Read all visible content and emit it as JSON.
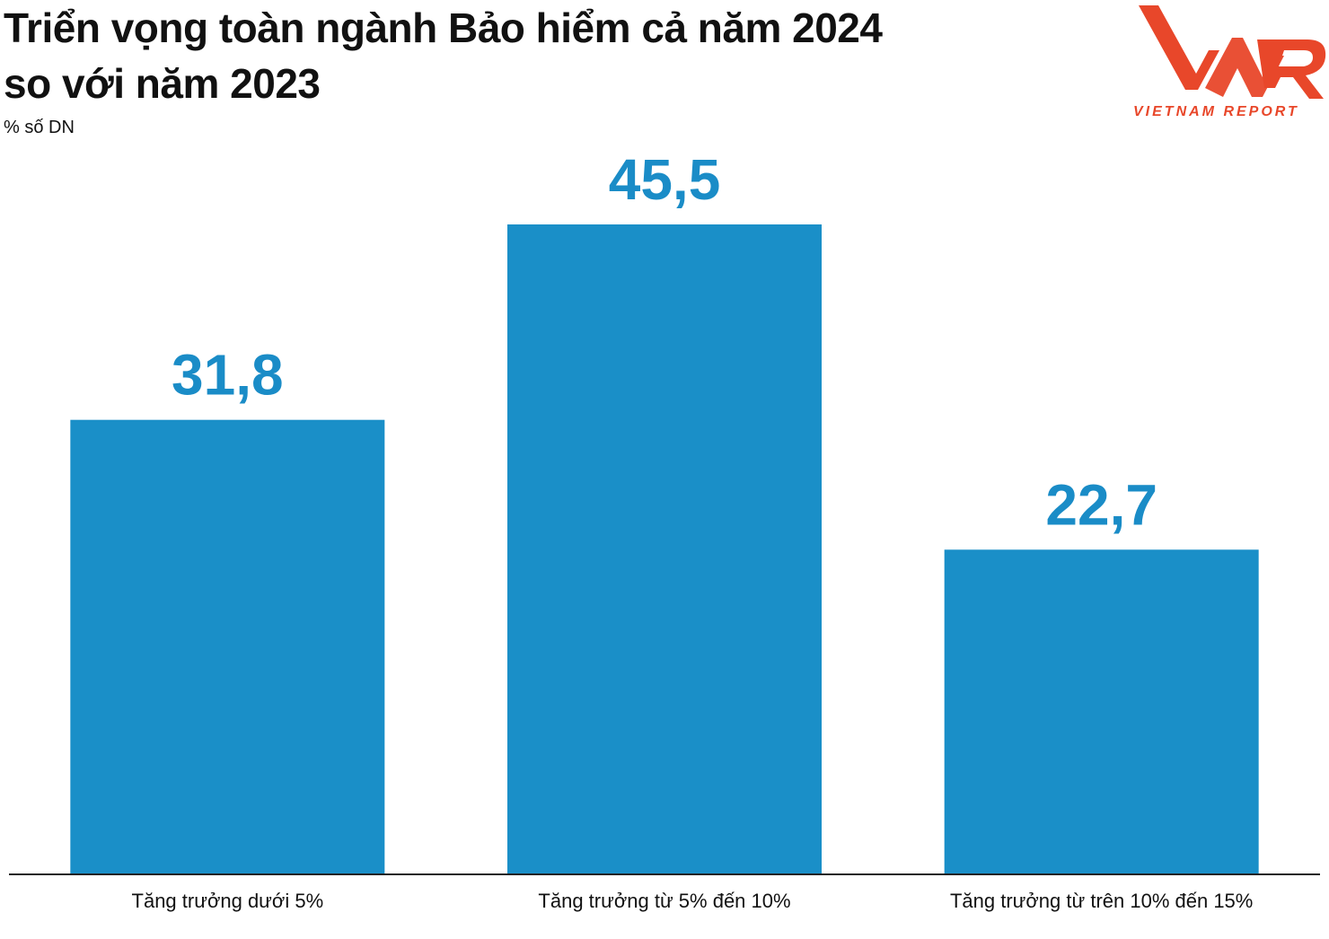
{
  "header": {
    "title_line1": "Triển vọng toàn ngành Bảo hiểm cả năm 2024",
    "title_line2": "so với năm 2023",
    "unit_label": "% số DN"
  },
  "logo": {
    "mark": "VNR",
    "text": "VIETNAM REPORT",
    "color": "#e8472a"
  },
  "chart_data": {
    "type": "bar",
    "title": "Triển vọng toàn ngành Bảo hiểm cả năm 2024 so với năm 2023",
    "ylabel": "% số DN",
    "xlabel": "",
    "categories": [
      "Tăng trưởng dưới 5%",
      "Tăng trưởng từ 5% đến 10%",
      "Tăng trưởng từ trên 10% đến 15%"
    ],
    "values": [
      31.8,
      45.5,
      22.7
    ],
    "value_labels": [
      "31,8",
      "45,5",
      "22,7"
    ],
    "ylim": [
      0,
      45.5
    ],
    "grid": false,
    "legend": "none",
    "bar_color": "#1a8fc8",
    "label_color": "#1a8cc7"
  }
}
